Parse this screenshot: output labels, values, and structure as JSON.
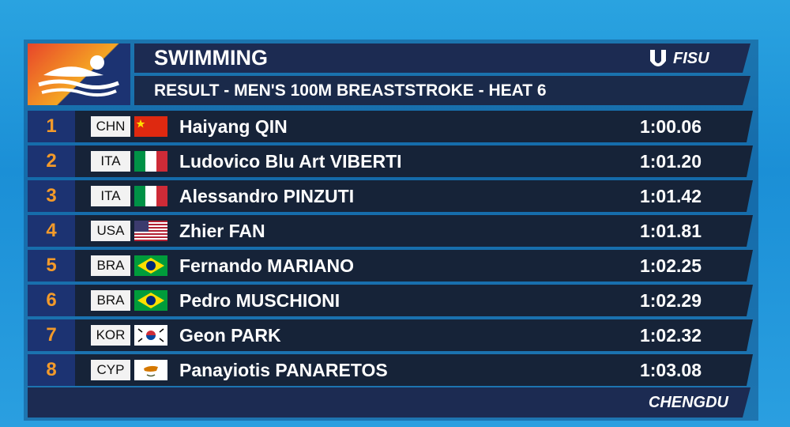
{
  "header": {
    "title": "SWIMMING",
    "subtitle": "RESULT - MEN'S 100M BREASTSTROKE - HEAT 6",
    "brand": "FISU"
  },
  "results": [
    {
      "rank": "1",
      "country": "CHN",
      "name": "Haiyang QIN",
      "time": "1:00.06"
    },
    {
      "rank": "2",
      "country": "ITA",
      "name": "Ludovico Blu Art VIBERTI",
      "time": "1:01.20"
    },
    {
      "rank": "3",
      "country": "ITA",
      "name": "Alessandro PINZUTI",
      "time": "1:01.42"
    },
    {
      "rank": "4",
      "country": "USA",
      "name": "Zhier FAN",
      "time": "1:01.81"
    },
    {
      "rank": "5",
      "country": "BRA",
      "name": "Fernando MARIANO",
      "time": "1:02.25"
    },
    {
      "rank": "6",
      "country": "BRA",
      "name": "Pedro MUSCHIONI",
      "time": "1:02.29"
    },
    {
      "rank": "7",
      "country": "KOR",
      "name": "Geon PARK",
      "time": "1:02.32"
    },
    {
      "rank": "8",
      "country": "CYP",
      "name": "Panayiotis PANARETOS",
      "time": "1:03.08"
    }
  ],
  "footer": {
    "city": "CHENGDU"
  }
}
